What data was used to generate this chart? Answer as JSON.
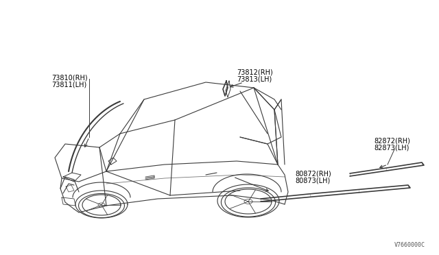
{
  "bg_color": "#ffffff",
  "line_color": "#3a3a3a",
  "label_color": "#000000",
  "diagram_code": "V7660000C",
  "labels": {
    "top_left_upper": "73810(RH)",
    "top_left_lower": "73811(LH)",
    "top_mid_upper": "73812(RH)",
    "top_mid_lower": "73813(LH)",
    "right_upper": "82872(RH)",
    "right_lower": "82873(LH)",
    "bottom_mid_upper": "80872(RH)",
    "bottom_mid_lower": "80873(LH)"
  },
  "font_size": 7.0,
  "diagram_code_fontsize": 6.0
}
